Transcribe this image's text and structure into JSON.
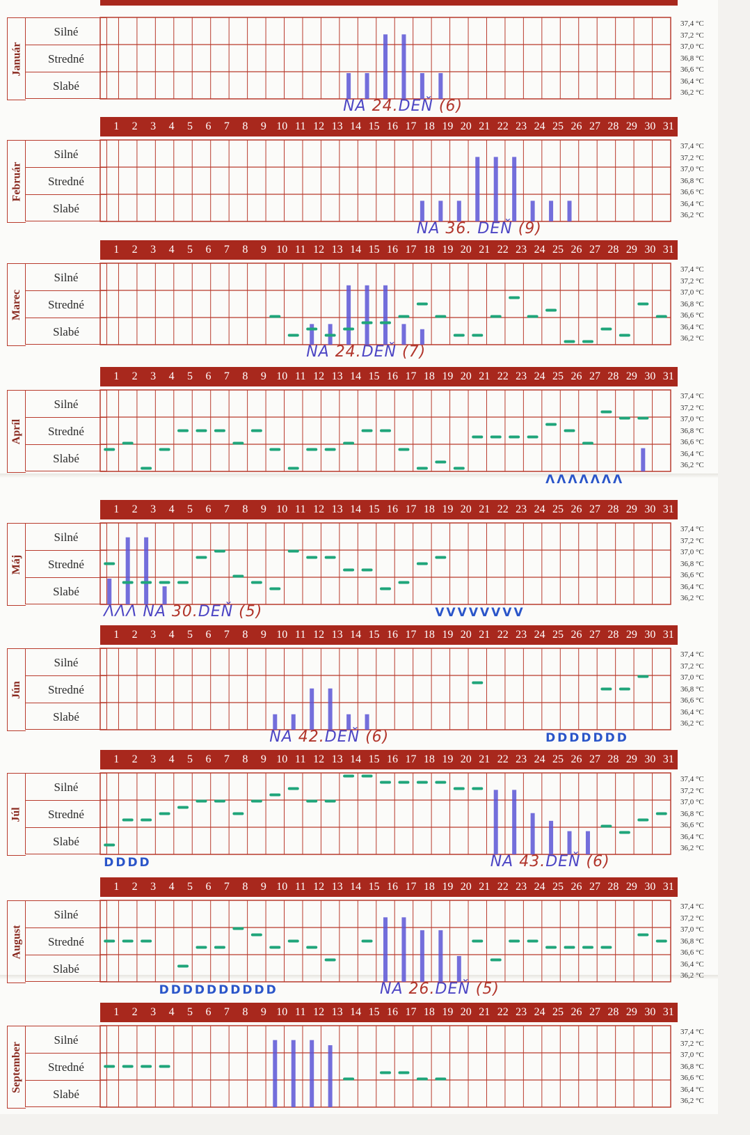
{
  "days": [
    "1",
    "2",
    "3",
    "4",
    "5",
    "6",
    "7",
    "8",
    "9",
    "10",
    "11",
    "12",
    "13",
    "14",
    "15",
    "16",
    "17",
    "18",
    "19",
    "20",
    "21",
    "22",
    "23",
    "24",
    "25",
    "26",
    "27",
    "28",
    "29",
    "30",
    "31"
  ],
  "levels": [
    "Silné",
    "Stredné",
    "Slabé"
  ],
  "temps": [
    "37,4 °C",
    "37,2 °C",
    "37,0 °C",
    "36,8 °C",
    "36,6 °C",
    "36,4 °C",
    "36,2 °C"
  ],
  "colors": {
    "grid": "#b83a2c",
    "header": "#a8281d",
    "blue": "#5a55d6",
    "green": "#1fa57a",
    "dark": "#222222",
    "red": "#b1352b"
  },
  "months": [
    {
      "name": "Január",
      "top": 12,
      "header": false,
      "bars": [
        {
          "d": 14,
          "l": 1
        },
        {
          "d": 15,
          "l": 1
        },
        {
          "d": 16,
          "l": 2.5
        },
        {
          "d": 17,
          "l": 2.5
        },
        {
          "d": 18,
          "l": 1
        },
        {
          "d": 19,
          "l": 1
        }
      ],
      "temps": [],
      "note": {
        "prefix": "NA ",
        "day": "24.",
        "suffix": "DEŇ",
        "count": "(6)"
      }
    },
    {
      "name": "Február",
      "top": 188,
      "header": true,
      "bars": [
        {
          "d": 18,
          "l": 0.8
        },
        {
          "d": 19,
          "l": 0.8
        },
        {
          "d": 20,
          "l": 0.8
        },
        {
          "d": 21,
          "l": 2.5
        },
        {
          "d": 22,
          "l": 2.5
        },
        {
          "d": 23,
          "l": 2.5
        },
        {
          "d": 24,
          "l": 0.8
        },
        {
          "d": 25,
          "l": 0.8
        },
        {
          "d": 26,
          "l": 0.8
        }
      ],
      "temps": [],
      "note": {
        "prefix": "NA ",
        "day": "36.",
        "suffix": " DEŇ",
        "count": "(9)"
      }
    },
    {
      "name": "Marec",
      "top": 365,
      "header": true,
      "bars": [
        {
          "d": 12,
          "l": 0.8
        },
        {
          "d": 13,
          "l": 0.8
        },
        {
          "d": 14,
          "l": 2.3
        },
        {
          "d": 15,
          "l": 2.3
        },
        {
          "d": 16,
          "l": 2.3
        },
        {
          "d": 17,
          "l": 0.8
        },
        {
          "d": 18,
          "l": 0.6
        }
      ],
      "temps": [
        {
          "d": 10,
          "t": 36.6
        },
        {
          "d": 11,
          "t": 36.3
        },
        {
          "d": 12,
          "t": 36.4
        },
        {
          "d": 13,
          "t": 36.3
        },
        {
          "d": 14,
          "t": 36.4
        },
        {
          "d": 15,
          "t": 36.5
        },
        {
          "d": 16,
          "t": 36.5
        },
        {
          "d": 17,
          "t": 36.6
        },
        {
          "d": 18,
          "t": 36.8
        },
        {
          "d": 19,
          "t": 36.6
        },
        {
          "d": 20,
          "t": 36.3
        },
        {
          "d": 21,
          "t": 36.3
        },
        {
          "d": 22,
          "t": 36.6
        },
        {
          "d": 23,
          "t": 36.9
        },
        {
          "d": 24,
          "t": 36.6
        },
        {
          "d": 25,
          "t": 36.7
        },
        {
          "d": 26,
          "t": 36.2
        },
        {
          "d": 27,
          "t": 36.2
        },
        {
          "d": 28,
          "t": 36.4
        },
        {
          "d": 29,
          "t": 36.3
        },
        {
          "d": 30,
          "t": 36.8
        },
        {
          "d": 31,
          "t": 36.6
        }
      ],
      "note": {
        "prefix": "NA ",
        "day": "24.",
        "suffix": "DEŇ",
        "count": "(7)"
      }
    },
    {
      "name": "Apríl",
      "top": 547,
      "header": true,
      "bars": [
        {
          "d": 30,
          "l": 0.9
        }
      ],
      "temps": [
        {
          "d": 1,
          "t": 36.5
        },
        {
          "d": 2,
          "t": 36.6
        },
        {
          "d": 3,
          "t": 36.2
        },
        {
          "d": 4,
          "t": 36.5
        },
        {
          "d": 5,
          "t": 36.8
        },
        {
          "d": 6,
          "t": 36.8
        },
        {
          "d": 7,
          "t": 36.8
        },
        {
          "d": 8,
          "t": 36.6
        },
        {
          "d": 9,
          "t": 36.8
        },
        {
          "d": 10,
          "t": 36.5
        },
        {
          "d": 11,
          "t": 36.2
        },
        {
          "d": 12,
          "t": 36.5
        },
        {
          "d": 13,
          "t": 36.5
        },
        {
          "d": 14,
          "t": 36.6
        },
        {
          "d": 15,
          "t": 36.8
        },
        {
          "d": 16,
          "t": 36.8
        },
        {
          "d": 17,
          "t": 36.5
        },
        {
          "d": 18,
          "t": 36.2
        },
        {
          "d": 19,
          "t": 36.3
        },
        {
          "d": 20,
          "t": 36.2
        },
        {
          "d": 21,
          "t": 36.7
        },
        {
          "d": 22,
          "t": 36.7
        },
        {
          "d": 23,
          "t": 36.7
        },
        {
          "d": 24,
          "t": 36.7
        },
        {
          "d": 25,
          "t": 36.9
        },
        {
          "d": 26,
          "t": 36.8
        },
        {
          "d": 27,
          "t": 36.6
        },
        {
          "d": 28,
          "t": 37.1
        },
        {
          "d": 29,
          "t": 37.0
        },
        {
          "d": 30,
          "t": 37.0
        }
      ],
      "marks": {
        "text": "ΛΛΛΛΛΛΛ",
        "d": 25
      },
      "note": null
    },
    {
      "name": "Máj",
      "top": 738,
      "header": true,
      "bars": [
        {
          "d": 1,
          "l": 1.0
        },
        {
          "d": 2,
          "l": 2.6
        },
        {
          "d": 3,
          "l": 2.6
        },
        {
          "d": 4,
          "l": 0.7
        }
      ],
      "temps": [
        {
          "d": 1,
          "t": 36.8
        },
        {
          "d": 2,
          "t": 36.5
        },
        {
          "d": 3,
          "t": 36.5
        },
        {
          "d": 4,
          "t": 36.5
        },
        {
          "d": 5,
          "t": 36.5
        },
        {
          "d": 6,
          "t": 36.9
        },
        {
          "d": 7,
          "t": 37.0
        },
        {
          "d": 8,
          "t": 36.6
        },
        {
          "d": 9,
          "t": 36.5
        },
        {
          "d": 10,
          "t": 36.4
        },
        {
          "d": 11,
          "t": 37.0
        },
        {
          "d": 12,
          "t": 36.9
        },
        {
          "d": 13,
          "t": 36.9
        },
        {
          "d": 14,
          "t": 36.7
        },
        {
          "d": 15,
          "t": 36.7
        },
        {
          "d": 16,
          "t": 36.4
        },
        {
          "d": 17,
          "t": 36.5
        },
        {
          "d": 18,
          "t": 36.8
        },
        {
          "d": 19,
          "t": 36.9
        }
      ],
      "marks": {
        "text": "VVVVVVVV",
        "d": 19
      },
      "note": {
        "prefix": "ΛΛΛ NA ",
        "day": "30.",
        "suffix": "DEŇ",
        "count": "(5)"
      }
    },
    {
      "name": "Jún",
      "top": 918,
      "header": true,
      "bars": [
        {
          "d": 10,
          "l": 0.6
        },
        {
          "d": 11,
          "l": 0.6
        },
        {
          "d": 12,
          "l": 1.6
        },
        {
          "d": 13,
          "l": 1.6
        },
        {
          "d": 14,
          "l": 0.6
        },
        {
          "d": 15,
          "l": 0.6
        }
      ],
      "temps": [
        {
          "d": 21,
          "t": 36.9
        },
        {
          "d": 28,
          "t": 36.8
        },
        {
          "d": 29,
          "t": 36.8
        },
        {
          "d": 30,
          "t": 37.0
        }
      ],
      "marks": {
        "text": "DDDDDDD",
        "d": 25
      },
      "note": {
        "prefix": "NA ",
        "day": "42.",
        "suffix": "DEŇ",
        "count": "(6)"
      }
    },
    {
      "name": "Júl",
      "top": 1097,
      "header": true,
      "bars": [
        {
          "d": 22,
          "l": 2.5
        },
        {
          "d": 23,
          "l": 2.5
        },
        {
          "d": 24,
          "l": 1.6
        },
        {
          "d": 25,
          "l": 1.3
        },
        {
          "d": 26,
          "l": 0.9
        },
        {
          "d": 27,
          "l": 0.9
        }
      ],
      "temps": [
        {
          "d": 1,
          "t": 36.3
        },
        {
          "d": 2,
          "t": 36.7
        },
        {
          "d": 3,
          "t": 36.7
        },
        {
          "d": 4,
          "t": 36.8
        },
        {
          "d": 5,
          "t": 36.9
        },
        {
          "d": 6,
          "t": 37.0
        },
        {
          "d": 7,
          "t": 37.0
        },
        {
          "d": 8,
          "t": 36.8
        },
        {
          "d": 9,
          "t": 37.0
        },
        {
          "d": 10,
          "t": 37.1
        },
        {
          "d": 11,
          "t": 37.2
        },
        {
          "d": 12,
          "t": 37.0
        },
        {
          "d": 13,
          "t": 37.0
        },
        {
          "d": 14,
          "t": 37.4
        },
        {
          "d": 15,
          "t": 37.4
        },
        {
          "d": 16,
          "t": 37.3
        },
        {
          "d": 17,
          "t": 37.3
        },
        {
          "d": 18,
          "t": 37.3
        },
        {
          "d": 19,
          "t": 37.3
        },
        {
          "d": 20,
          "t": 37.2
        },
        {
          "d": 21,
          "t": 37.2
        },
        {
          "d": 28,
          "t": 36.6
        },
        {
          "d": 29,
          "t": 36.5
        },
        {
          "d": 30,
          "t": 36.7
        },
        {
          "d": 31,
          "t": 36.8
        }
      ],
      "marks": {
        "text": "DDDD",
        "d": 1
      },
      "note": {
        "prefix": "NA ",
        "day": "43.",
        "suffix": "DEŇ",
        "count": "(6)"
      }
    },
    {
      "name": "August",
      "top": 1280,
      "header": true,
      "bars": [
        {
          "d": 16,
          "l": 2.5
        },
        {
          "d": 17,
          "l": 2.5
        },
        {
          "d": 18,
          "l": 2.0
        },
        {
          "d": 19,
          "l": 2.0
        },
        {
          "d": 20,
          "l": 1.0
        }
      ],
      "temps": [
        {
          "d": 1,
          "t": 36.8
        },
        {
          "d": 2,
          "t": 36.8
        },
        {
          "d": 3,
          "t": 36.8
        },
        {
          "d": 5,
          "t": 36.4
        },
        {
          "d": 6,
          "t": 36.7
        },
        {
          "d": 7,
          "t": 36.7
        },
        {
          "d": 8,
          "t": 37.0
        },
        {
          "d": 9,
          "t": 36.9
        },
        {
          "d": 10,
          "t": 36.7
        },
        {
          "d": 11,
          "t": 36.8
        },
        {
          "d": 12,
          "t": 36.7
        },
        {
          "d": 13,
          "t": 36.5
        },
        {
          "d": 15,
          "t": 36.8
        },
        {
          "d": 21,
          "t": 36.8
        },
        {
          "d": 22,
          "t": 36.5
        },
        {
          "d": 23,
          "t": 36.8
        },
        {
          "d": 24,
          "t": 36.8
        },
        {
          "d": 25,
          "t": 36.7
        },
        {
          "d": 26,
          "t": 36.7
        },
        {
          "d": 27,
          "t": 36.7
        },
        {
          "d": 28,
          "t": 36.7
        },
        {
          "d": 30,
          "t": 36.9
        },
        {
          "d": 31,
          "t": 36.8
        }
      ],
      "marks": {
        "text": "DDDDDDDDDD",
        "d": 4
      },
      "note": {
        "prefix": "NA ",
        "day": "26.",
        "suffix": "DEŇ",
        "count": "(5)"
      }
    },
    {
      "name": "September",
      "top": 1460,
      "header": true,
      "bars": [
        {
          "d": 10,
          "l": 2.6
        },
        {
          "d": 11,
          "l": 2.6
        },
        {
          "d": 12,
          "l": 2.6
        },
        {
          "d": 13,
          "l": 2.4
        }
      ],
      "temps": [
        {
          "d": 1,
          "t": 36.8
        },
        {
          "d": 2,
          "t": 36.8
        },
        {
          "d": 3,
          "t": 36.8
        },
        {
          "d": 4,
          "t": 36.8
        },
        {
          "d": 14,
          "t": 36.6
        },
        {
          "d": 16,
          "t": 36.7
        },
        {
          "d": 17,
          "t": 36.7
        },
        {
          "d": 18,
          "t": 36.6
        },
        {
          "d": 19,
          "t": 36.6
        }
      ],
      "note": null
    }
  ]
}
